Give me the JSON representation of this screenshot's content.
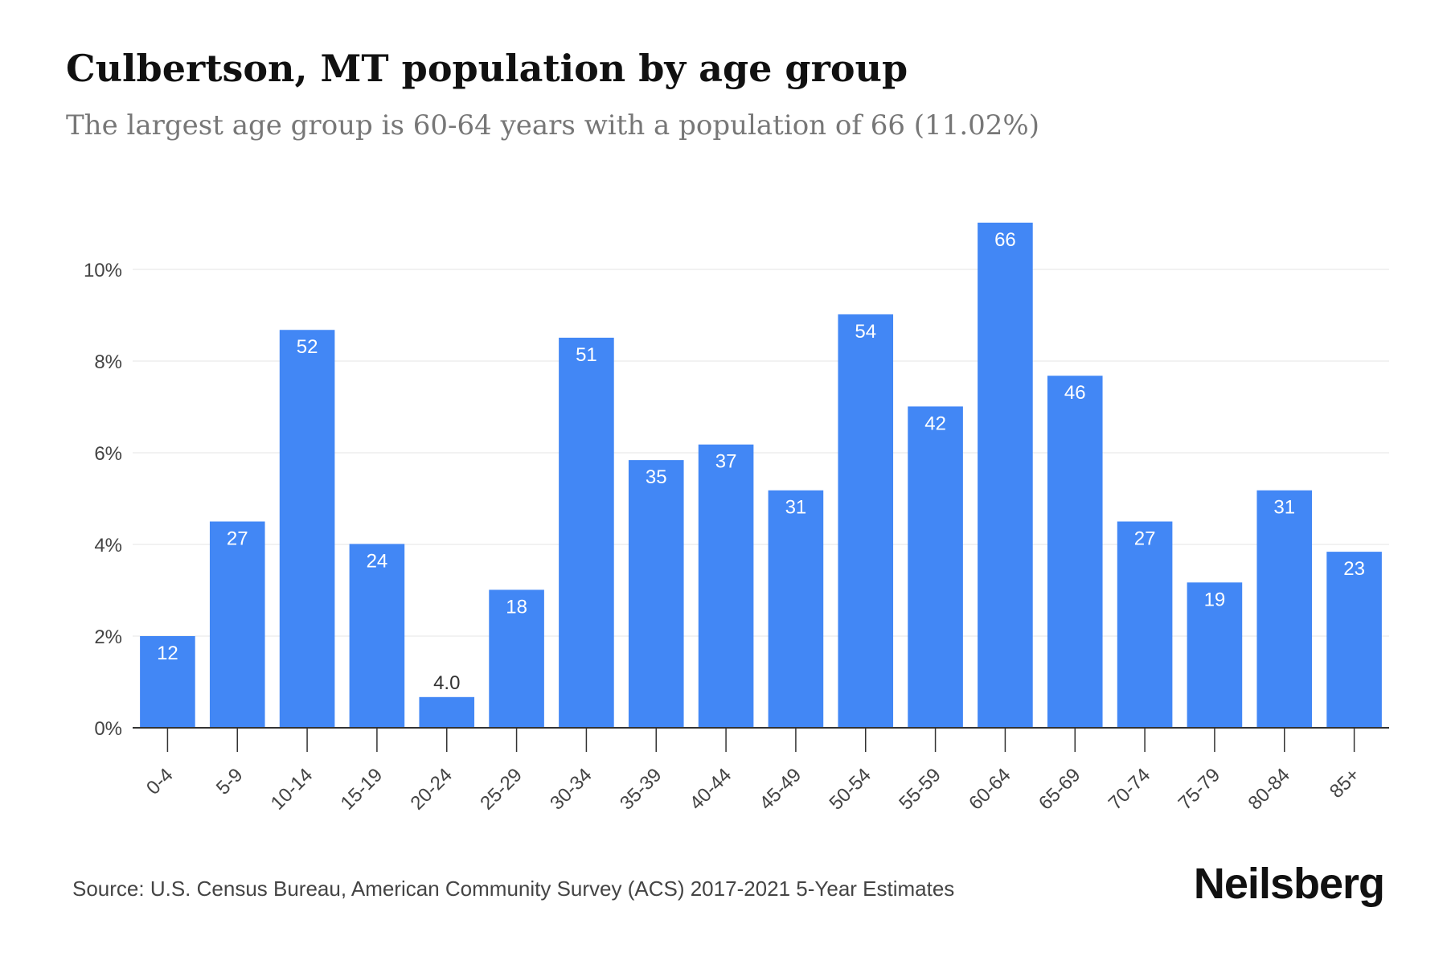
{
  "title": "Culbertson, MT population by age group",
  "subtitle": "The largest age group is 60-64 years with a population of 66 (11.02%)",
  "source": "Source: U.S. Census Bureau, American Community Survey (ACS) 2017-2021 5-Year Estimates",
  "brand": "Neilsberg",
  "colors": {
    "bar": "#4287f5",
    "bar_label_inside": "#ffffff",
    "bar_label_outside": "#333333",
    "grid": "#eeeeee",
    "axis": "#333333"
  },
  "chart_data": {
    "type": "bar",
    "categories": [
      "0-4",
      "5-9",
      "10-14",
      "15-19",
      "20-24",
      "25-29",
      "30-34",
      "35-39",
      "40-44",
      "45-49",
      "50-54",
      "55-59",
      "60-64",
      "65-69",
      "70-74",
      "75-79",
      "80-84",
      "85+"
    ],
    "values": [
      2.0,
      4.5,
      8.68,
      4.01,
      0.67,
      3.01,
      8.51,
      5.84,
      6.18,
      5.18,
      9.02,
      7.01,
      11.02,
      7.68,
      4.5,
      3.17,
      5.18,
      3.84
    ],
    "data_labels": [
      "12",
      "27",
      "52",
      "24",
      "4.0",
      "18",
      "51",
      "35",
      "37",
      "31",
      "54",
      "42",
      "66",
      "46",
      "27",
      "19",
      "31",
      "23"
    ],
    "ylim": [
      0,
      12
    ],
    "yticks": [
      0,
      2,
      4,
      6,
      8,
      10
    ],
    "ytick_labels": [
      "0%",
      "2%",
      "4%",
      "6%",
      "8%",
      "10%"
    ],
    "grid": true,
    "xlabel": "",
    "ylabel": ""
  }
}
